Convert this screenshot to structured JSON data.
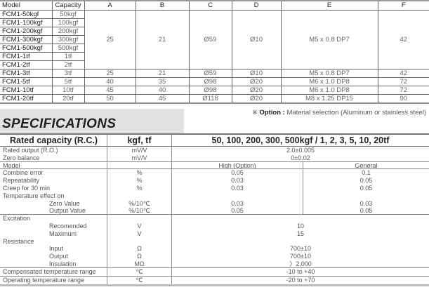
{
  "dimensions": {
    "headers": [
      "Model",
      "Capacity",
      "A",
      "B",
      "C",
      "D",
      "E",
      "F"
    ],
    "group": {
      "models": [
        "FCM1-50kgf",
        "FCM1-100kgf",
        "FCM1-200kgf",
        "FCM1-300kgf",
        "FCM1-500kgf",
        "FCM1-1tf",
        "FCM1-2tf"
      ],
      "capacities": [
        "50kgf",
        "100kgf",
        "200kgf",
        "300kgf",
        "500kgf",
        "1tf",
        "2tf"
      ],
      "A": "25",
      "B": "21",
      "C": "Ø59",
      "D": "Ø10",
      "E": "M5 x 0.8 DP7",
      "F": "42"
    },
    "rows": [
      [
        "FCM1-3tf",
        "3tf",
        "25",
        "21",
        "Ø59",
        "Ø10",
        "M5 x 0.8 DP7",
        "42"
      ],
      [
        "FCM1-5tf",
        "5tf",
        "40",
        "35",
        "Ø98",
        "Ø20",
        "M6 x 1.0 DP8",
        "72"
      ],
      [
        "FCM1-10tf",
        "10tf",
        "45",
        "40",
        "Ø98",
        "Ø20",
        "M6 x 1.0 DP8",
        "72"
      ],
      [
        "FCM1-20tf",
        "20tf",
        "50",
        "45",
        "Ø118",
        "Ø20",
        "M8 x 1.25 DP15",
        "90"
      ]
    ]
  },
  "note": {
    "mark": "※",
    "label": "Option :",
    "text": "Material selection (Aluminum or stainless steel)"
  },
  "specifications": {
    "title": "SPECIFICATIONS",
    "header": {
      "label": "Rated capacity (R.C.)",
      "unit": "kgf, tf",
      "value": "50, 100, 200, 300, 500kgf / 1, 2, 3, 5, 10, 20tf"
    },
    "rated_output": {
      "label": "Rated output (R.O.)",
      "unit": "mV/V",
      "value": "2.0±0.005"
    },
    "zero_balance": {
      "label": "Zero balance",
      "unit": "mV/V",
      "value": "0±0.02"
    },
    "model": {
      "label": "Model",
      "high": "High (Option)",
      "general": "General"
    },
    "combine": {
      "label": "Combine error",
      "unit": "%",
      "high": "0.05",
      "general": "0.1"
    },
    "repeat": {
      "label": "Repeatability",
      "unit": "%",
      "high": "0.03",
      "general": "0.05"
    },
    "creep": {
      "label": "Creep for 30 min",
      "unit": "%",
      "high": "0.03",
      "general": "0.05"
    },
    "temp_effect": {
      "label": "Temperature effect on"
    },
    "zero_value": {
      "label": "Zero Value",
      "unit": "%/10℃",
      "high": "0.03",
      "general": "0.03"
    },
    "output_value": {
      "label": "Output Value",
      "unit": "%/10℃",
      "high": "0.05",
      "general": "0.05"
    },
    "excitation": {
      "label": "Excitation"
    },
    "recommended": {
      "label": "Recomended",
      "unit": "V",
      "value": "10"
    },
    "maximum": {
      "label": "Maximum",
      "unit": "V",
      "value": "15"
    },
    "resistance": {
      "label": "Resistance"
    },
    "input": {
      "label": "Input",
      "unit": "Ω",
      "value": "700±10"
    },
    "output": {
      "label": "Output",
      "unit": "Ω",
      "value": "700±10"
    },
    "insulation": {
      "label": "Insulation",
      "unit": "MΩ",
      "value": "〉2,000"
    },
    "compensated": {
      "label": "Compensated temperature range",
      "unit": "℃",
      "value": "-10 to +40"
    },
    "operating": {
      "label": "Operating temperature range",
      "unit": "℃",
      "value": "-20 to +70"
    }
  }
}
